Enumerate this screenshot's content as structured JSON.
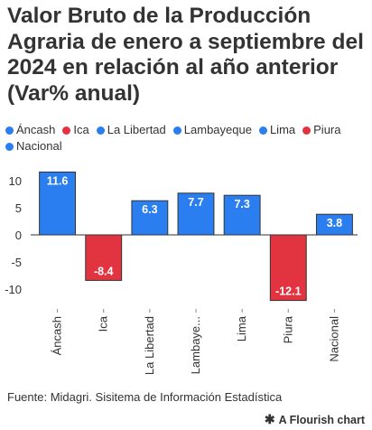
{
  "title": "Valor Bruto de la Producción Agraria de enero a septiembre del 2024 en relación al año anterior (Var% anual)",
  "legend": [
    {
      "label": "Áncash",
      "color": "#2a7ef0"
    },
    {
      "label": "Ica",
      "color": "#e23340"
    },
    {
      "label": "La Libertad",
      "color": "#2a7ef0"
    },
    {
      "label": "Lambayeque",
      "color": "#2a7ef0"
    },
    {
      "label": "Lima",
      "color": "#2a7ef0"
    },
    {
      "label": "Piura",
      "color": "#e23340"
    },
    {
      "label": "Nacional",
      "color": "#2a7ef0"
    }
  ],
  "source": "Fuente: Midagri. Sisitema de Información Estadística",
  "flourish": "A Flourish chart",
  "chart_data": {
    "type": "bar",
    "categories": [
      "Áncash",
      "Ica",
      "La Libertad",
      "Lambayeque",
      "Lima",
      "Piura",
      "Nacional"
    ],
    "category_tick_labels": [
      "Áncash",
      "Ica",
      "La Libertad",
      "Lambaye...",
      "Lima",
      "Piura",
      "Nacional"
    ],
    "values": [
      11.6,
      -8.4,
      6.3,
      7.7,
      7.3,
      -12.1,
      3.8
    ],
    "value_labels": [
      "11.6",
      "-8.4",
      "6.3",
      "7.7",
      "7.3",
      "-12.1",
      "3.8"
    ],
    "colors": [
      "#2a7ef0",
      "#e23340",
      "#2a7ef0",
      "#2a7ef0",
      "#2a7ef0",
      "#e23340",
      "#2a7ef0"
    ],
    "ylim": [
      -13,
      12
    ],
    "yticks": [
      10,
      5,
      0,
      -5,
      -10
    ],
    "ytick_labels": [
      "10",
      "5",
      "0",
      "-5",
      "-10"
    ],
    "grid": false
  }
}
